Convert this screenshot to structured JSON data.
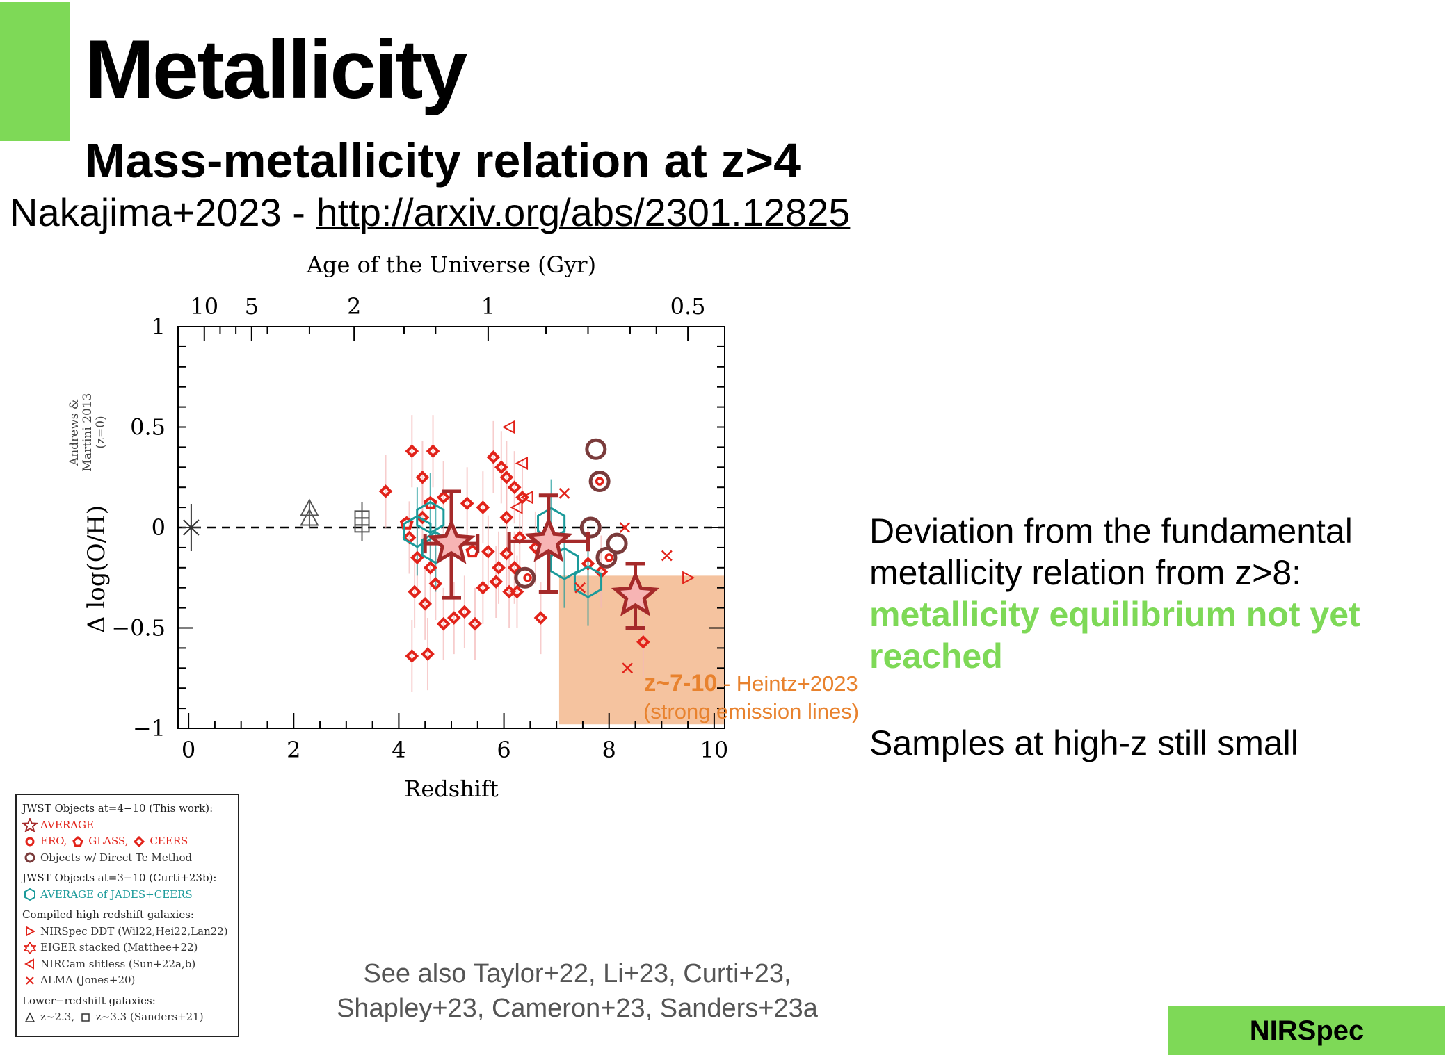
{
  "slide": {
    "title": "Metallicity",
    "subtitle": "Mass-metallicity relation at z>4",
    "citation_prefix": "Nakajima+2023 - ",
    "citation_link": "http://arxiv.org/abs/2301.12825",
    "side_text_1": "Deviation from the fundamental metallicity relation from z>8:",
    "side_text_highlight": "metallicity equilibrium not yet reached",
    "side_text_2": "Samples at high-z still small",
    "see_also_1": "See also Taylor+22, Li+23, Curti+23,",
    "see_also_2": "Shapley+23, Cameron+23, Sanders+23a",
    "badge": "NIRSpec",
    "accent_color": "#7ed957",
    "highlight_color": "#e8822e"
  },
  "legend": {
    "group1_title": "JWST Objects at=4−10 (This work):",
    "average": "AVERAGE",
    "ero": "ERO,",
    "glass": "GLASS,",
    "ceers": "CEERS",
    "direct_te": "Objects w/ Direct Te Method",
    "group2_title": "JWST Objects at=3−10 (Curti+23b):",
    "jades_ceers": "AVERAGE of JADES+CEERS",
    "group3_title": "Compiled high redshift galaxies:",
    "nirspec_ddt": "NIRSpec DDT (Wil22,Hei22,Lan22)",
    "eiger": "EIGER stacked (Matthee+22)",
    "nircam": "NIRCam slitless (Sun+22a,b)",
    "alma": "ALMA (Jones+20)",
    "group4_title": "Lower−redshift galaxies:",
    "lowz": "z~2.3,",
    "lowz2": "z~3.3 (Sanders+21)"
  },
  "chart_data": {
    "type": "scatter",
    "xlabel": "Redshift",
    "ylabel": "Δ log(O/H)",
    "top_axis_label": "Age of the Universe (Gyr)",
    "xlim": [
      -0.2,
      10.2
    ],
    "ylim": [
      -1,
      1
    ],
    "x_ticks": [
      "0",
      "2",
      "4",
      "6",
      "8",
      "10"
    ],
    "y_ticks": [
      "−1",
      "−0.5",
      "0",
      "0.5",
      "1"
    ],
    "top_ticks": [
      {
        "label": "10",
        "z": 0.3
      },
      {
        "label": "5",
        "z": 1.2
      },
      {
        "label": "2",
        "z": 3.15
      },
      {
        "label": "1",
        "z": 5.7
      },
      {
        "label": "0.5",
        "z": 9.5
      }
    ],
    "y_side_note": [
      "Andrews &",
      "Martini 2013",
      "(z=0)"
    ],
    "reference_line_y": 0,
    "shaded_region": {
      "x": [
        7.05,
        10.2
      ],
      "y": [
        -0.98,
        -0.24
      ],
      "label_bold": "z~7-10",
      "label_rest": " - Heintz+2023",
      "label_line2": "(strong emission lines)"
    },
    "averages": [
      {
        "x": 5.0,
        "y": -0.08,
        "xerr": 0.5,
        "yerr_lo": 0.27,
        "yerr_hi": 0.26
      },
      {
        "x": 6.85,
        "y": -0.07,
        "xerr": 0.75,
        "yerr_lo": 0.25,
        "yerr_hi": 0.23
      },
      {
        "x": 8.5,
        "y": -0.34,
        "xerr": 0.0,
        "yerr_lo": 0.16,
        "yerr_hi": 0.16
      }
    ],
    "ceers_points": [
      [
        3.75,
        0.18
      ],
      [
        4.25,
        0.38
      ],
      [
        4.45,
        0.25
      ],
      [
        4.65,
        0.38
      ],
      [
        4.85,
        0.15
      ],
      [
        4.45,
        0.05
      ],
      [
        4.2,
        -0.05
      ],
      [
        4.35,
        -0.15
      ],
      [
        4.6,
        -0.2
      ],
      [
        4.3,
        -0.32
      ],
      [
        4.5,
        -0.38
      ],
      [
        4.7,
        -0.28
      ],
      [
        4.85,
        -0.48
      ],
      [
        5.05,
        -0.45
      ],
      [
        5.25,
        -0.42
      ],
      [
        5.45,
        -0.48
      ],
      [
        5.3,
        0.12
      ],
      [
        5.6,
        0.1
      ],
      [
        5.7,
        -0.12
      ],
      [
        5.9,
        -0.2
      ],
      [
        5.6,
        -0.3
      ],
      [
        5.85,
        -0.27
      ],
      [
        6.05,
        -0.13
      ],
      [
        6.2,
        -0.2
      ],
      [
        6.25,
        -0.32
      ],
      [
        6.1,
        -0.32
      ],
      [
        5.8,
        0.35
      ],
      [
        5.95,
        0.3
      ],
      [
        6.05,
        0.25
      ],
      [
        6.2,
        0.2
      ],
      [
        6.35,
        0.15
      ],
      [
        6.05,
        0.05
      ],
      [
        6.3,
        -0.05
      ],
      [
        6.6,
        -0.1
      ],
      [
        4.25,
        -0.64
      ],
      [
        4.55,
        -0.63
      ],
      [
        6.7,
        -0.45
      ],
      [
        7.6,
        -0.18
      ],
      [
        7.85,
        -0.22
      ],
      [
        8.65,
        -0.57
      ]
    ],
    "ero_points": [
      [
        7.82,
        0.23
      ],
      [
        8.0,
        -0.15
      ],
      [
        6.45,
        -0.25
      ]
    ],
    "glass_points": [
      [
        4.6,
        0.12
      ],
      [
        4.15,
        0.02
      ],
      [
        5.4,
        -0.12
      ]
    ],
    "direct_te_points": [
      [
        7.75,
        0.39
      ],
      [
        7.82,
        0.23
      ],
      [
        8.15,
        -0.08
      ],
      [
        7.95,
        -0.15
      ],
      [
        6.4,
        -0.25
      ],
      [
        7.65,
        0.0
      ]
    ],
    "jades_ceers_points": [
      [
        4.35,
        -0.02
      ],
      [
        4.7,
        -0.1
      ],
      [
        6.9,
        0.02
      ],
      [
        7.15,
        -0.18
      ],
      [
        7.6,
        -0.27
      ],
      [
        4.6,
        0.05
      ]
    ],
    "nirspec_ddt_points": [
      [
        9.5,
        -0.25
      ]
    ],
    "nircam_points": [
      [
        6.1,
        0.5
      ],
      [
        6.35,
        0.32
      ],
      [
        6.45,
        0.15
      ],
      [
        6.25,
        0.1
      ]
    ],
    "alma_points": [
      [
        7.15,
        0.17
      ],
      [
        8.3,
        0.0
      ],
      [
        9.1,
        -0.14
      ],
      [
        8.35,
        -0.7
      ],
      [
        7.45,
        -0.3
      ]
    ],
    "lowz_points": [
      [
        2.3,
        0.04
      ],
      [
        3.3,
        0.03
      ]
    ],
    "z0_point": [
      0.05,
      0.0
    ]
  }
}
